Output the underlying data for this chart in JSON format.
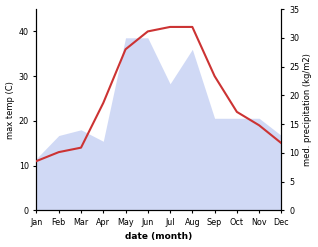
{
  "months": [
    "Jan",
    "Feb",
    "Mar",
    "Apr",
    "May",
    "Jun",
    "Jul",
    "Aug",
    "Sep",
    "Oct",
    "Nov",
    "Dec"
  ],
  "temp": [
    11,
    13,
    14,
    24,
    36,
    40,
    41,
    41,
    30,
    22,
    19,
    15
  ],
  "precip": [
    9,
    13,
    14,
    12,
    30,
    30,
    22,
    28,
    16,
    16,
    16,
    13
  ],
  "temp_color": "#cc3333",
  "precip_color": "#aabbee",
  "precip_fill_alpha": 0.55,
  "xlabel": "date (month)",
  "ylabel_left": "max temp (C)",
  "ylabel_right": "med. precipitation (kg/m2)",
  "ylim_left": [
    0,
    45
  ],
  "ylim_right": [
    0,
    35
  ],
  "yticks_left": [
    0,
    10,
    20,
    30,
    40
  ],
  "yticks_right": [
    0,
    5,
    10,
    15,
    20,
    25,
    30,
    35
  ]
}
